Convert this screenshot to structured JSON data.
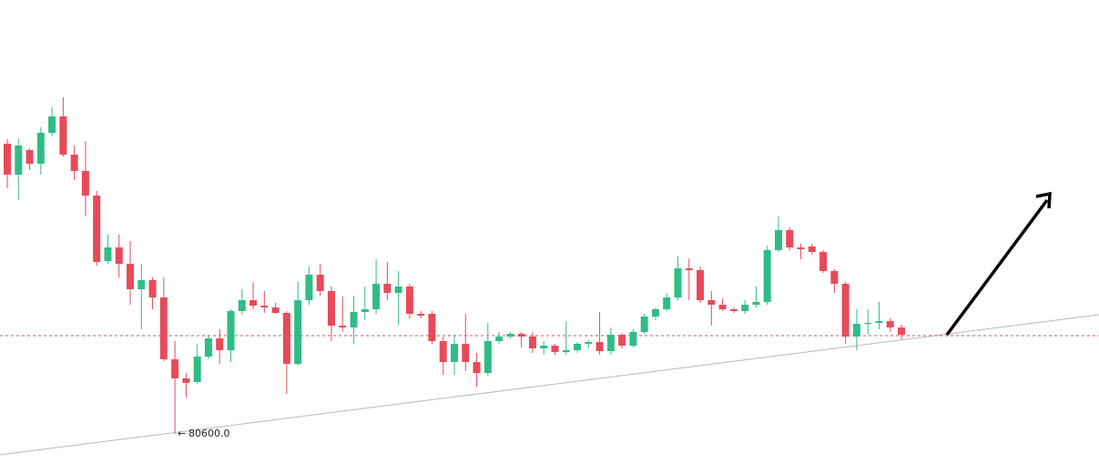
{
  "chart_data": {
    "type": "candlestick",
    "ylim": [
      80280,
      85370
    ],
    "up_color": "#2ebd85",
    "down_color": "#e84a5a",
    "open": [
      83790,
      83450,
      83720,
      83570,
      83910,
      84090,
      83670,
      83490,
      83220,
      82500,
      82650,
      82470,
      82190,
      82290,
      82100,
      81420,
      81210,
      81170,
      81450,
      81650,
      81520,
      81950,
      82070,
      82010,
      81990,
      81930,
      81370,
      82070,
      82350,
      82170,
      81790,
      81770,
      81940,
      81970,
      82250,
      82150,
      82220,
      81920,
      81920,
      81620,
      81390,
      81590,
      81390,
      81270,
      81620,
      81670,
      81700,
      81670,
      81540,
      81570,
      81500,
      81520,
      81590,
      81610,
      81510,
      81690,
      81570,
      81720,
      81890,
      81970,
      82100,
      82420,
      82400,
      82070,
      82020,
      81970,
      81950,
      82020,
      82050,
      82620,
      82840,
      82650,
      82660,
      82600,
      82390,
      82250,
      81670,
      81810,
      81820,
      81840,
      81770
    ],
    "high": [
      83840,
      83840,
      83740,
      83970,
      84190,
      84300,
      83770,
      83820,
      83270,
      82790,
      82790,
      82720,
      82470,
      82320,
      82320,
      81620,
      81270,
      81590,
      81690,
      81750,
      81970,
      82190,
      82270,
      82170,
      82040,
      81950,
      82270,
      82440,
      82470,
      82220,
      82110,
      82120,
      82220,
      82520,
      82490,
      82390,
      82250,
      81950,
      81950,
      81670,
      81690,
      81920,
      81490,
      81820,
      81720,
      81720,
      81720,
      81720,
      81620,
      81590,
      81840,
      81610,
      81630,
      81940,
      81770,
      81710,
      81750,
      81920,
      81990,
      82140,
      82550,
      82530,
      82440,
      82170,
      82090,
      81990,
      82070,
      82220,
      82670,
      82990,
      82870,
      82690,
      82690,
      82620,
      82410,
      82270,
      81970,
      81970,
      82050,
      81870,
      81800
    ],
    "low": [
      83300,
      83170,
      83500,
      83450,
      83870,
      83650,
      83390,
      82990,
      82450,
      82470,
      82320,
      82020,
      81750,
      81970,
      81400,
      80600,
      81000,
      81150,
      81420,
      81370,
      81390,
      81910,
      81970,
      81930,
      81920,
      81040,
      81350,
      82020,
      82120,
      81620,
      81720,
      81590,
      81850,
      81920,
      82070,
      81800,
      81870,
      81870,
      81590,
      81250,
      81250,
      81290,
      81120,
      81240,
      81590,
      81650,
      81550,
      81490,
      81470,
      81470,
      81470,
      81490,
      81540,
      81470,
      81470,
      81540,
      81550,
      81700,
      81850,
      81950,
      82070,
      82070,
      82040,
      81790,
      81950,
      81930,
      81920,
      81990,
      82020,
      82600,
      82620,
      82520,
      82570,
      82370,
      82150,
      81590,
      81520,
      81690,
      81750,
      81720,
      81640
    ],
    "close": [
      83450,
      83770,
      83570,
      83910,
      84090,
      83670,
      83490,
      83220,
      82490,
      82650,
      82470,
      82190,
      82290,
      82100,
      81420,
      81210,
      81160,
      81450,
      81650,
      81520,
      81950,
      82070,
      82010,
      81990,
      81930,
      81370,
      82070,
      82350,
      82170,
      81790,
      81770,
      81940,
      81970,
      82250,
      82150,
      82220,
      81920,
      81900,
      81620,
      81390,
      81590,
      81390,
      81270,
      81620,
      81670,
      81700,
      81670,
      81540,
      81570,
      81500,
      81520,
      81590,
      81610,
      81510,
      81690,
      81570,
      81720,
      81890,
      81970,
      82100,
      82420,
      82400,
      82070,
      82020,
      81970,
      81950,
      82020,
      82050,
      82620,
      82840,
      82650,
      82630,
      82600,
      82390,
      82250,
      81670,
      81810,
      81820,
      81840,
      81770,
      81690
    ],
    "price_line": {
      "value": 81680,
      "color": "#e84a5a"
    },
    "trendline": {
      "start": 80370,
      "end": 81910,
      "color": "#b8b8b8"
    },
    "low_label": {
      "value": 80600,
      "label": "80600.0"
    }
  }
}
